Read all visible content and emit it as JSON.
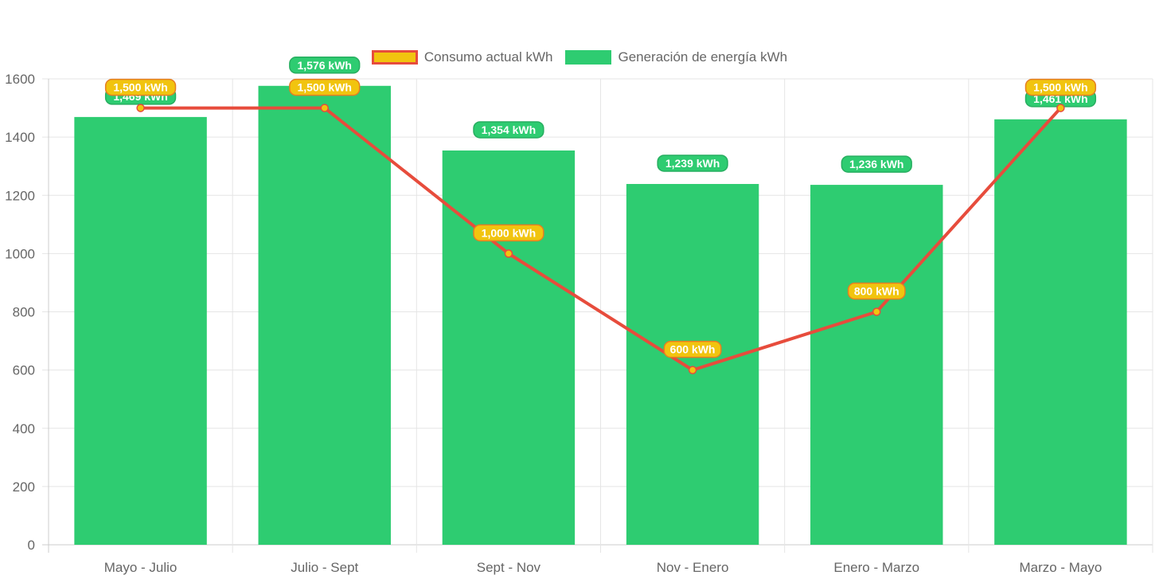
{
  "chart_data": {
    "type": "bar",
    "categories": [
      "Mayo - Julio",
      "Julio - Sept",
      "Sept - Nov",
      "Nov - Enero",
      "Enero - Marzo",
      "Marzo - Mayo"
    ],
    "ylim": [
      0,
      1600
    ],
    "yticks": [
      "0",
      "200",
      "400",
      "600",
      "800",
      "1000",
      "1200",
      "1400",
      "1600"
    ],
    "grid": true,
    "legend_position": "top",
    "series": [
      {
        "name": "Consumo actual kWh",
        "kind": "line",
        "color": "#e74c3c",
        "fill": "#f1c40f",
        "values": [
          1500,
          1500,
          1000,
          600,
          800,
          1500
        ],
        "labels": [
          "1,500 kWh",
          "1,500 kWh",
          "1,000 kWh",
          "600 kWh",
          "800 kWh",
          "1,500 kWh"
        ]
      },
      {
        "name": "Generación de energía kWh",
        "kind": "bar",
        "color": "#2ecc71",
        "values": [
          1469,
          1576,
          1354,
          1239,
          1236,
          1461
        ],
        "labels": [
          "1,469 kWh",
          "1,576 kWh",
          "1,354 kWh",
          "1,239 kWh",
          "1,236 kWh",
          "1,461 kWh"
        ]
      }
    ]
  }
}
